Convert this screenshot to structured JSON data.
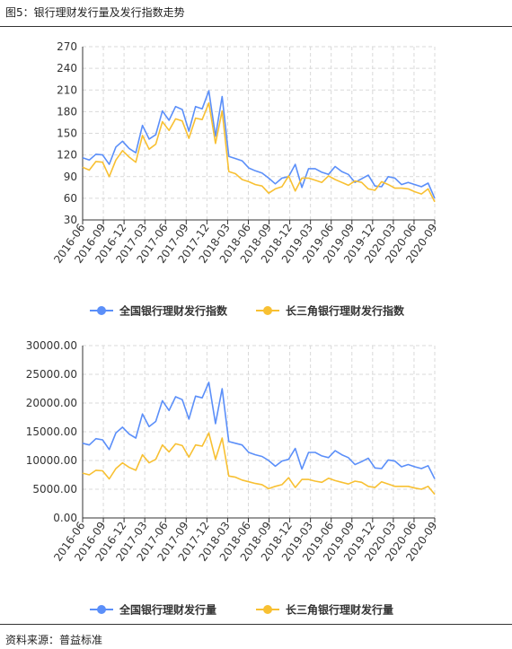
{
  "figure_title": "图5：银行理财发行量及发行指数走势",
  "source": "资料来源：普益标准",
  "colors": {
    "national": "#5B8FF9",
    "yrd": "#F8C032",
    "grid": "#d9d9d9",
    "axis": "#333333"
  },
  "chart_data": [
    {
      "type": "line",
      "x_tick_labels": [
        "2016-06",
        "2016-09",
        "2016-12",
        "2017-03",
        "2017-06",
        "2017-09",
        "2017-12",
        "2018-03",
        "2018-06",
        "2018-09",
        "2018-12",
        "2019-03",
        "2019-06",
        "2019-09",
        "2019-12",
        "2020-03",
        "2020-06",
        "2020-09"
      ],
      "ylim": [
        30,
        270
      ],
      "y_ticks": [
        "30",
        "60",
        "90",
        "120",
        "150",
        "180",
        "210",
        "240",
        "270"
      ],
      "grid": true,
      "legend": "bottom-center",
      "series": [
        {
          "name": "全国银行理财发行指数",
          "values": [
            116,
            113,
            121,
            120,
            107,
            131,
            139,
            129,
            123,
            161,
            142,
            148,
            181,
            168,
            187,
            183,
            153,
            187,
            184,
            209,
            146,
            201,
            118,
            115,
            112,
            102,
            98,
            95,
            88,
            80,
            88,
            90,
            107,
            75,
            101,
            101,
            96,
            93,
            104,
            97,
            93,
            82,
            87,
            92,
            77,
            76,
            90,
            88,
            79,
            82,
            79,
            76,
            81,
            60
          ]
        },
        {
          "name": "长三角银行理财发行指数",
          "values": [
            103,
            99,
            111,
            110,
            90,
            113,
            126,
            117,
            110,
            147,
            128,
            135,
            166,
            154,
            170,
            167,
            143,
            171,
            169,
            192,
            136,
            181,
            97,
            94,
            86,
            83,
            79,
            77,
            67,
            73,
            76,
            91,
            70,
            88,
            88,
            85,
            82,
            91,
            86,
            82,
            78,
            84,
            82,
            73,
            71,
            83,
            79,
            74,
            74,
            73,
            69,
            66,
            73,
            55
          ]
        }
      ]
    },
    {
      "type": "line",
      "x_tick_labels": [
        "2016-06",
        "2016-09",
        "2016-12",
        "2017-03",
        "2017-06",
        "2017-09",
        "2017-12",
        "2018-03",
        "2018-06",
        "2018-09",
        "2018-12",
        "2019-03",
        "2019-06",
        "2019-09",
        "2019-12",
        "2020-03",
        "2020-06",
        "2020-09"
      ],
      "ylim": [
        0,
        30000
      ],
      "y_ticks": [
        "0.00",
        "5000.00",
        "10000.00",
        "15000.00",
        "20000.00",
        "25000.00",
        "30000.00"
      ],
      "grid": true,
      "legend": "bottom-center",
      "series": [
        {
          "name": "全国银行理财发行量",
          "values": [
            13000,
            12700,
            13800,
            13600,
            11900,
            14800,
            15800,
            14600,
            13900,
            18100,
            15900,
            16800,
            20400,
            18700,
            21100,
            20600,
            17200,
            21200,
            20900,
            23600,
            16400,
            22500,
            13300,
            13000,
            12700,
            11400,
            11000,
            10700,
            10000,
            9000,
            9900,
            10200,
            12100,
            8500,
            11400,
            11400,
            10800,
            10500,
            11700,
            11000,
            10500,
            9300,
            9800,
            10400,
            8700,
            8600,
            10100,
            9900,
            8900,
            9300,
            8900,
            8600,
            9100,
            6800
          ]
        },
        {
          "name": "长三角银行理财发行量",
          "values": [
            7800,
            7500,
            8300,
            8200,
            6800,
            8600,
            9600,
            8800,
            8300,
            11000,
            9600,
            10200,
            12700,
            11500,
            12900,
            12600,
            10600,
            12700,
            12500,
            14800,
            10200,
            13900,
            7300,
            7100,
            6600,
            6300,
            6000,
            5800,
            5100,
            5500,
            5800,
            7000,
            5300,
            6700,
            6700,
            6400,
            6200,
            6900,
            6500,
            6200,
            5900,
            6400,
            6200,
            5500,
            5300,
            6300,
            5900,
            5500,
            5500,
            5500,
            5200,
            5000,
            5500,
            4100
          ]
        }
      ]
    }
  ]
}
